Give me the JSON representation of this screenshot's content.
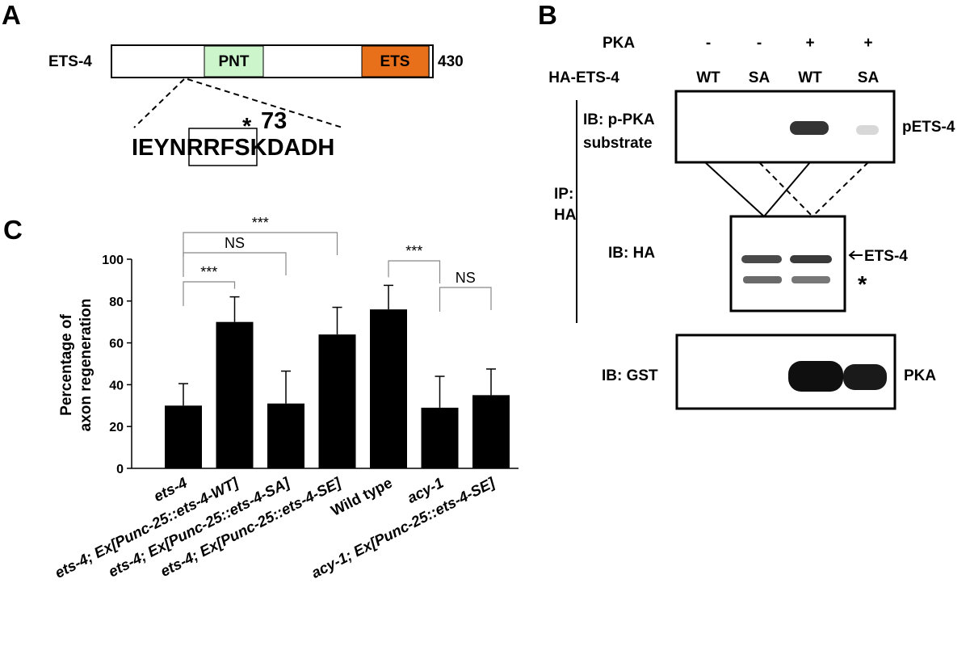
{
  "panels": {
    "a": "A",
    "b": "B",
    "c": "C"
  },
  "domain_diagram": {
    "protein": "ETS-4",
    "length": "430",
    "pnt_label": "PNT",
    "ets_label": "ETS",
    "pnt_color": "#ccf5cc",
    "ets_color": "#e8701a",
    "site_star": "*",
    "site_number": "73",
    "sequence_pre": "IEYN",
    "sequence_boxed": "RRFS",
    "sequence_post": "KDADH"
  },
  "blot": {
    "pka_row_label": "PKA",
    "ha_row_label": "HA-ETS-4",
    "pka": [
      "-",
      "-",
      "+",
      "+"
    ],
    "ha": [
      "WT",
      "SA",
      "WT",
      "SA"
    ],
    "ib_ppka_line1": "IB: p-PKA",
    "ib_ppka_line2": "substrate",
    "ip_line1": "IP:",
    "ip_line2": "HA",
    "ib_ha": "IB: HA",
    "ib_gst": "IB: GST",
    "band_pets4": "pETS-4",
    "band_ets4": "ETS-4",
    "band_star": "*",
    "band_pka": "PKA"
  },
  "chart_data": {
    "type": "bar",
    "ylabel_line1": "Percentage of",
    "ylabel_line2": "axon regeneration",
    "ylim": [
      0,
      100
    ],
    "yticks": [
      "0",
      "20",
      "40",
      "60",
      "80",
      "100"
    ],
    "categories": [
      "ets-4",
      "ets-4; Ex[Punc-25::ets-4-WT]",
      "ets-4; Ex[Punc-25::ets-4-SA]",
      "ets-4; Ex[Punc-25::ets-4-SE]",
      "Wild type",
      "acy-1",
      "acy-1; Ex[Punc-25::ets-4-SE]"
    ],
    "values": [
      30,
      70,
      31,
      64,
      76,
      29,
      35
    ],
    "errors": [
      10.5,
      12,
      15.5,
      13,
      11.5,
      15,
      12.5
    ],
    "bar_color": "#000000",
    "comparisons": [
      {
        "from": 0,
        "to": 1,
        "label": "***"
      },
      {
        "from": 0,
        "to": 2,
        "label": "NS"
      },
      {
        "from": 0,
        "to": 3,
        "label": "***"
      },
      {
        "from": 4,
        "to": 5,
        "label": "***"
      },
      {
        "from": 5,
        "to": 6,
        "label": "NS"
      }
    ]
  }
}
